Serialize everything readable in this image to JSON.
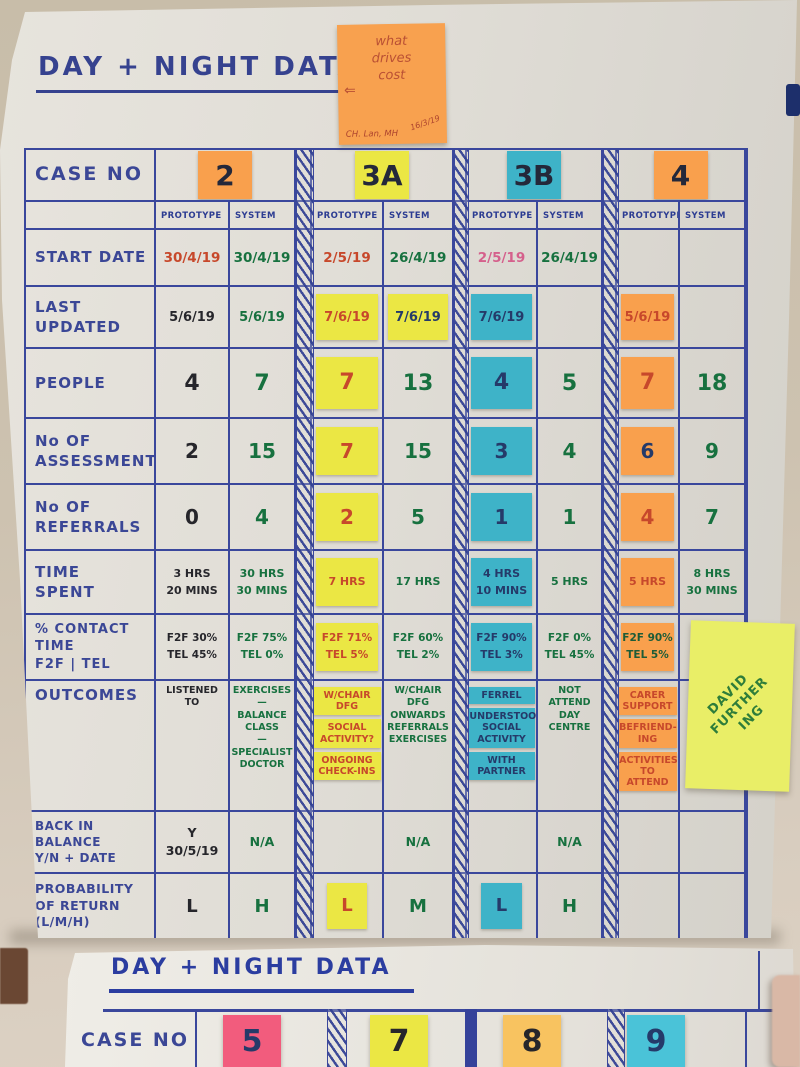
{
  "note_top": {
    "text": "what\ndrives\ncost",
    "arrow": "⇐",
    "footer": "CH. Lan, MH",
    "date": "16/3/19"
  },
  "sheet1": {
    "title": "DAY + NIGHT DATA",
    "case_label": "CASE NO",
    "col_headers": [
      "PROTOTYPE",
      "SYSTEM"
    ],
    "cases": [
      {
        "id": "2",
        "color": "orange"
      },
      {
        "id": "3A",
        "color": "yellow"
      },
      {
        "id": "3B",
        "color": "teal"
      },
      {
        "id": "4",
        "color": "orange"
      }
    ],
    "rows": [
      {
        "key": "start_date",
        "label": "START DATE",
        "cells": [
          {
            "text": "30/4/19",
            "ink": "red"
          },
          {
            "text": "30/4/19",
            "ink": "green"
          },
          {
            "text": "2/5/19",
            "ink": "red"
          },
          {
            "text": "26/4/19",
            "ink": "green"
          },
          {
            "text": "2/5/19",
            "ink": "pink"
          },
          {
            "text": "26/4/19",
            "ink": "green"
          },
          {
            "text": ""
          },
          {
            "text": ""
          }
        ]
      },
      {
        "key": "last_updated",
        "label": "LAST\nUPDATED",
        "cells": [
          {
            "text": "5/6/19",
            "ink": "black"
          },
          {
            "text": "5/6/19",
            "ink": "green"
          },
          {
            "text": "7/6/19",
            "ink": "red",
            "sticky": "yellow"
          },
          {
            "text": "7/6/19",
            "ink": "navy",
            "sticky": "yellow"
          },
          {
            "text": "7/6/19",
            "ink": "navy",
            "sticky": "teal"
          },
          {
            "text": ""
          },
          {
            "text": "5/6/19",
            "ink": "red",
            "sticky": "orange"
          },
          {
            "text": ""
          }
        ]
      },
      {
        "key": "people",
        "label": "PEOPLE",
        "cells": [
          {
            "text": "4",
            "ink": "black"
          },
          {
            "text": "7",
            "ink": "green"
          },
          {
            "text": "7",
            "ink": "red",
            "sticky": "yellow"
          },
          {
            "text": "13",
            "ink": "green"
          },
          {
            "text": "4",
            "ink": "navy",
            "sticky": "teal"
          },
          {
            "text": "5",
            "ink": "green"
          },
          {
            "text": "7",
            "ink": "red",
            "sticky": "orange"
          },
          {
            "text": "18",
            "ink": "green"
          }
        ]
      },
      {
        "key": "assessments",
        "label": "No OF\nASSESSMENTS",
        "cells": [
          {
            "text": "2",
            "ink": "black"
          },
          {
            "text": "15",
            "ink": "green"
          },
          {
            "text": "7",
            "ink": "red",
            "sticky": "yellow"
          },
          {
            "text": "15",
            "ink": "green"
          },
          {
            "text": "3",
            "ink": "navy",
            "sticky": "teal"
          },
          {
            "text": "4",
            "ink": "green"
          },
          {
            "text": "6",
            "ink": "navy",
            "sticky": "orange"
          },
          {
            "text": "9",
            "ink": "green"
          }
        ]
      },
      {
        "key": "referrals",
        "label": "No OF\nREFERRALS",
        "cells": [
          {
            "text": "0",
            "ink": "black"
          },
          {
            "text": "4",
            "ink": "green"
          },
          {
            "text": "2",
            "ink": "red",
            "sticky": "yellow"
          },
          {
            "text": "5",
            "ink": "green"
          },
          {
            "text": "1",
            "ink": "navy",
            "sticky": "teal"
          },
          {
            "text": "1",
            "ink": "green"
          },
          {
            "text": "4",
            "ink": "red",
            "sticky": "orange"
          },
          {
            "text": "7",
            "ink": "green"
          }
        ]
      },
      {
        "key": "time_spent",
        "label": "TIME\nSPENT",
        "cells": [
          {
            "text": "3 HRS\n20 MINS",
            "ink": "black"
          },
          {
            "text": "30 HRS\n30 MINS",
            "ink": "green"
          },
          {
            "text": "7 HRS",
            "ink": "red",
            "sticky": "yellow"
          },
          {
            "text": "17 HRS",
            "ink": "green"
          },
          {
            "text": "4 HRS\n10 MINS",
            "ink": "navy",
            "sticky": "teal"
          },
          {
            "text": "5 HRS",
            "ink": "green"
          },
          {
            "text": "5 HRS",
            "ink": "red",
            "sticky": "orange"
          },
          {
            "text": "8 HRS\n30 MINS",
            "ink": "green"
          }
        ]
      },
      {
        "key": "contact",
        "label": "% CONTACT\nTIME\nF2F | TEL",
        "cells": [
          {
            "text": "F2F 30%\nTEL 45%",
            "ink": "black"
          },
          {
            "text": "F2F 75%\nTEL 0%",
            "ink": "green"
          },
          {
            "text": "F2F 71%\nTEL 5%",
            "ink": "red",
            "sticky": "yellow"
          },
          {
            "text": "F2F 60%\nTEL 2%",
            "ink": "green"
          },
          {
            "text": "F2F 90%\nTEL 3%",
            "ink": "navy",
            "sticky": "teal"
          },
          {
            "text": "F2F 0%\nTEL 45%",
            "ink": "green"
          },
          {
            "text": "F2F 90%\nTEL 5%",
            "ink": "darkgreen",
            "sticky": "orange"
          },
          {
            "text": ""
          }
        ]
      },
      {
        "key": "outcomes",
        "label": "OUTCOMES",
        "cells": [
          {
            "text": "LISTENED\nTO",
            "ink": "black"
          },
          {
            "text": "EXERCISES\n—\nBALANCE\nCLASS\n—\nSPECIALIST\nDOCTOR",
            "ink": "green"
          },
          {
            "stack": [
              "W/CHAIR\nDFG",
              "SOCIAL\nACTIVITY?",
              "ONGOING\nCHECK-INS"
            ],
            "ink": "red",
            "sticky": "yellow"
          },
          {
            "text": "W/CHAIR\nDFG\nONWARDS\nREFERRALS\nEXERCISES",
            "ink": "green"
          },
          {
            "stack": [
              "FERREL",
              "UNDERSTOOD\nSOCIAL\nACTIVITY",
              "WITH\nPARTNER"
            ],
            "ink": "navy",
            "sticky": "teal"
          },
          {
            "text": "NOT\nATTEND\nDAY\nCENTRE",
            "ink": "green"
          },
          {
            "stack": [
              "CARER\nSUPPORT",
              "BEFRIEND-\nING",
              "ACTIVITIES\nTO\nATTEND"
            ],
            "ink": "red",
            "sticky": "orange"
          },
          {
            "text": ""
          }
        ]
      },
      {
        "key": "back",
        "label": "BACK IN BALANCE\nY/N + DATE",
        "cells": [
          {
            "text": "Y\n30/5/19",
            "ink": "black"
          },
          {
            "text": "N/A",
            "ink": "green"
          },
          {
            "text": ""
          },
          {
            "text": "N/A",
            "ink": "green"
          },
          {
            "text": ""
          },
          {
            "text": "N/A",
            "ink": "green"
          },
          {
            "text": ""
          },
          {
            "text": ""
          }
        ]
      },
      {
        "key": "probability",
        "label": "PROBABILITY\nOF RETURN\n(L/M/H)",
        "cells": [
          {
            "text": "L",
            "ink": "black"
          },
          {
            "text": "H",
            "ink": "green"
          },
          {
            "text": "L",
            "ink": "red",
            "sticky": "yellow"
          },
          {
            "text": "M",
            "ink": "green"
          },
          {
            "text": "L",
            "ink": "navy",
            "sticky": "teal"
          },
          {
            "text": "H",
            "ink": "green"
          },
          {
            "text": ""
          },
          {
            "text": ""
          }
        ]
      }
    ]
  },
  "side_note": {
    "text": "DAVID\nFURTHER\nING"
  },
  "sheet2": {
    "title": "DAY + NIGHT DATA",
    "case_label": "CASE NO",
    "cases": [
      {
        "id": "5",
        "color": "pink",
        "ink": "navy"
      },
      {
        "id": "7",
        "color": "yellow",
        "ink": "black"
      },
      {
        "id": "8",
        "color": "amber",
        "ink": "black"
      },
      {
        "id": "9",
        "color": "cyan",
        "ink": "navy"
      }
    ]
  },
  "colors": {
    "marker_blue": "#3a479c",
    "ink_green": "#17713f",
    "ink_red": "#c7482b",
    "sticky_orange": "#f9a04d",
    "sticky_yellow": "#ebe744",
    "sticky_teal": "#3eb3c8",
    "sticky_pink": "#f25c7d",
    "sticky_amber": "#f8c360",
    "sticky_cyan": "#4ac3d8",
    "side_note_yellow": "#e9ee67"
  }
}
